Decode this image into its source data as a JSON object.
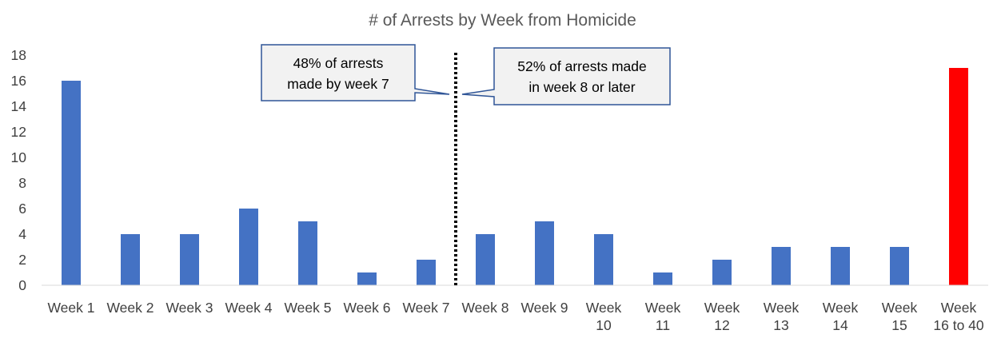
{
  "chart_data": {
    "type": "bar",
    "title": "# of Arrests by Week from Homicide",
    "xlabel": "",
    "ylabel": "",
    "ylim": [
      0,
      18
    ],
    "yticks": [
      0,
      2,
      4,
      6,
      8,
      10,
      12,
      14,
      16,
      18
    ],
    "categories": [
      [
        "Week 1"
      ],
      [
        "Week 2"
      ],
      [
        "Week 3"
      ],
      [
        "Week 4"
      ],
      [
        "Week 5"
      ],
      [
        "Week 6"
      ],
      [
        "Week 7"
      ],
      [
        "Week 8"
      ],
      [
        "Week 9"
      ],
      [
        "Week",
        "10"
      ],
      [
        "Week",
        "11"
      ],
      [
        "Week",
        "12"
      ],
      [
        "Week",
        "13"
      ],
      [
        "Week",
        "14"
      ],
      [
        "Week",
        "15"
      ],
      [
        "Week",
        "16 to 40"
      ]
    ],
    "values": [
      16,
      4,
      4,
      6,
      5,
      1,
      2,
      4,
      5,
      4,
      1,
      2,
      3,
      3,
      3,
      17
    ],
    "bar_colors": [
      "#4472C4",
      "#4472C4",
      "#4472C4",
      "#4472C4",
      "#4472C4",
      "#4472C4",
      "#4472C4",
      "#4472C4",
      "#4472C4",
      "#4472C4",
      "#4472C4",
      "#4472C4",
      "#4472C4",
      "#4472C4",
      "#4472C4",
      "#FF0000"
    ],
    "grid": false,
    "legend": "none",
    "divider": {
      "after_category": 7,
      "style": "dotted",
      "color": "#000000"
    },
    "annotations": [
      {
        "lines": [
          "48% of arrests",
          "made by week 7"
        ],
        "side": "left",
        "points_to": "divider"
      },
      {
        "lines": [
          "52% of arrests made",
          "in week 8 or later"
        ],
        "side": "right",
        "points_to": "divider"
      }
    ],
    "colors": {
      "axis": "#D9D9D9",
      "tick_text": "#404040",
      "title_text": "#595959",
      "callout_fill": "#F2F2F2",
      "callout_border": "#2F5597"
    }
  }
}
